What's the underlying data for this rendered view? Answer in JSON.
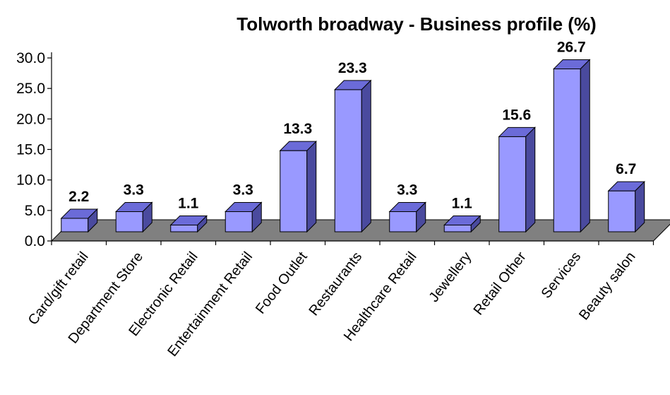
{
  "chart_data": {
    "type": "bar",
    "title": "Tolworth broadway - Business profile (%)",
    "xlabel": "",
    "ylabel": "",
    "categories": [
      "Card/gift retail",
      "Department Store",
      "Electronic Retail",
      "Entertainment Retail",
      "Food Outlet",
      "Restaurants",
      "Healthcare Retail",
      "Jewellery",
      "Retail Other",
      "Services",
      "Beauty salon"
    ],
    "values": [
      2.2,
      3.3,
      1.1,
      3.3,
      13.3,
      23.3,
      3.3,
      1.1,
      15.6,
      26.7,
      6.7
    ],
    "value_labels": [
      "2.2",
      "3.3",
      "1.1",
      "3.3",
      "13.3",
      "23.3",
      "3.3",
      "1.1",
      "15.6",
      "26.7",
      "6.7"
    ],
    "ylim": [
      0,
      30
    ],
    "yticks": [
      "0.0",
      "5.0",
      "10.0",
      "15.0",
      "20.0",
      "25.0",
      "30.0"
    ],
    "grid": false,
    "legend": "none",
    "style": "3d",
    "colors": {
      "bar_front": "#9999ff",
      "bar_top": "#6b6bd8",
      "bar_side": "#4a4a9e",
      "floor": "#808080",
      "axis": "#000000"
    }
  }
}
